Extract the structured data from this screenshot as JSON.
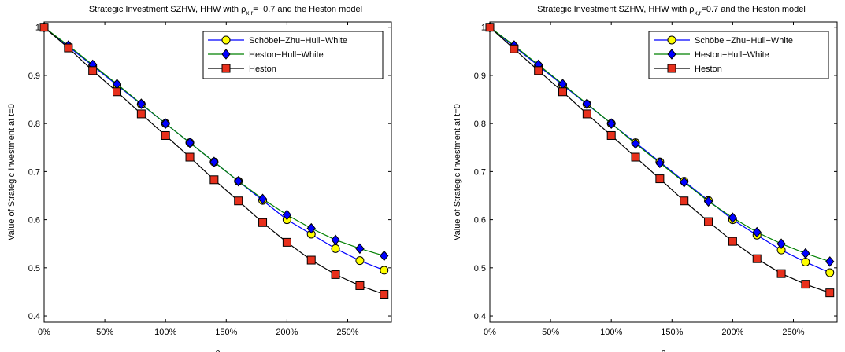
{
  "chart_data": [
    {
      "type": "line",
      "title": [
        "Strategic Investment SZHW, HHW with ρ",
        "x,r",
        "=−0.7 and the Heston model"
      ],
      "x_label": "ρ",
      "y_label": "Value of Strategic Investment at t=0",
      "x": [
        0,
        20,
        40,
        60,
        80,
        100,
        120,
        140,
        160,
        180,
        200,
        220,
        240,
        260,
        280
      ],
      "xlim": [
        0,
        286
      ],
      "ylim": [
        0.387,
        1.011
      ],
      "xticks": [
        {
          "value": 0,
          "label": "0%"
        },
        {
          "value": 50,
          "label": "50%"
        },
        {
          "value": 100,
          "label": "100%"
        },
        {
          "value": 150,
          "label": "150%"
        },
        {
          "value": 200,
          "label": "200%"
        },
        {
          "value": 250,
          "label": "250%"
        }
      ],
      "yticks": [
        0.4,
        0.5,
        0.6,
        0.7,
        0.8,
        0.9,
        1
      ],
      "legend": "upper right",
      "series": [
        {
          "name": "Schöbel−Zhu−Hull−White",
          "color": "#0000ff",
          "marker": "circle",
          "marker_color": "#ffff00",
          "values": [
            1.0,
            0.96,
            0.92,
            0.88,
            0.84,
            0.8,
            0.76,
            0.72,
            0.68,
            0.64,
            0.6,
            0.57,
            0.54,
            0.515,
            0.495
          ]
        },
        {
          "name": "Heston−Hull−White",
          "color": "#008000",
          "marker": "diamond",
          "marker_color": "#0000ff",
          "values": [
            1.0,
            0.962,
            0.922,
            0.882,
            0.841,
            0.8,
            0.76,
            0.72,
            0.68,
            0.643,
            0.61,
            0.582,
            0.558,
            0.54,
            0.525
          ]
        },
        {
          "name": "Heston",
          "color": "#000000",
          "marker": "square",
          "marker_color": "#e8301c",
          "values": [
            1.0,
            0.957,
            0.91,
            0.866,
            0.82,
            0.775,
            0.73,
            0.683,
            0.639,
            0.594,
            0.553,
            0.516,
            0.486,
            0.463,
            0.445
          ]
        }
      ]
    },
    {
      "type": "line",
      "title": [
        "Strategic Investment SZHW, HHW with ρ",
        "x,r",
        "=0.7 and the Heston model"
      ],
      "x_label": "ρ",
      "y_label": "Value of Strategic Investment at t=0",
      "x": [
        0,
        20,
        40,
        60,
        80,
        100,
        120,
        140,
        160,
        180,
        200,
        220,
        240,
        260,
        280
      ],
      "xlim": [
        0,
        286
      ],
      "ylim": [
        0.387,
        1.011
      ],
      "xticks": [
        {
          "value": 0,
          "label": "0%"
        },
        {
          "value": 50,
          "label": "50%"
        },
        {
          "value": 100,
          "label": "100%"
        },
        {
          "value": 150,
          "label": "150%"
        },
        {
          "value": 200,
          "label": "200%"
        },
        {
          "value": 250,
          "label": "250%"
        }
      ],
      "yticks": [
        0.4,
        0.5,
        0.6,
        0.7,
        0.8,
        0.9,
        1
      ],
      "legend": "upper right",
      "series": [
        {
          "name": "Schöbel−Zhu−Hull−White",
          "color": "#0000ff",
          "marker": "circle",
          "marker_color": "#ffff00",
          "values": [
            1.0,
            0.96,
            0.92,
            0.88,
            0.84,
            0.8,
            0.76,
            0.72,
            0.68,
            0.64,
            0.6,
            0.568,
            0.537,
            0.512,
            0.49
          ]
        },
        {
          "name": "Heston−Hull−White",
          "color": "#008000",
          "marker": "diamond",
          "marker_color": "#0000ff",
          "values": [
            1.0,
            0.962,
            0.922,
            0.882,
            0.841,
            0.8,
            0.758,
            0.718,
            0.678,
            0.638,
            0.604,
            0.574,
            0.55,
            0.53,
            0.513
          ]
        },
        {
          "name": "Heston",
          "color": "#000000",
          "marker": "square",
          "marker_color": "#e8301c",
          "values": [
            1.0,
            0.955,
            0.91,
            0.866,
            0.82,
            0.775,
            0.73,
            0.685,
            0.639,
            0.596,
            0.555,
            0.519,
            0.488,
            0.466,
            0.448
          ]
        }
      ]
    }
  ]
}
